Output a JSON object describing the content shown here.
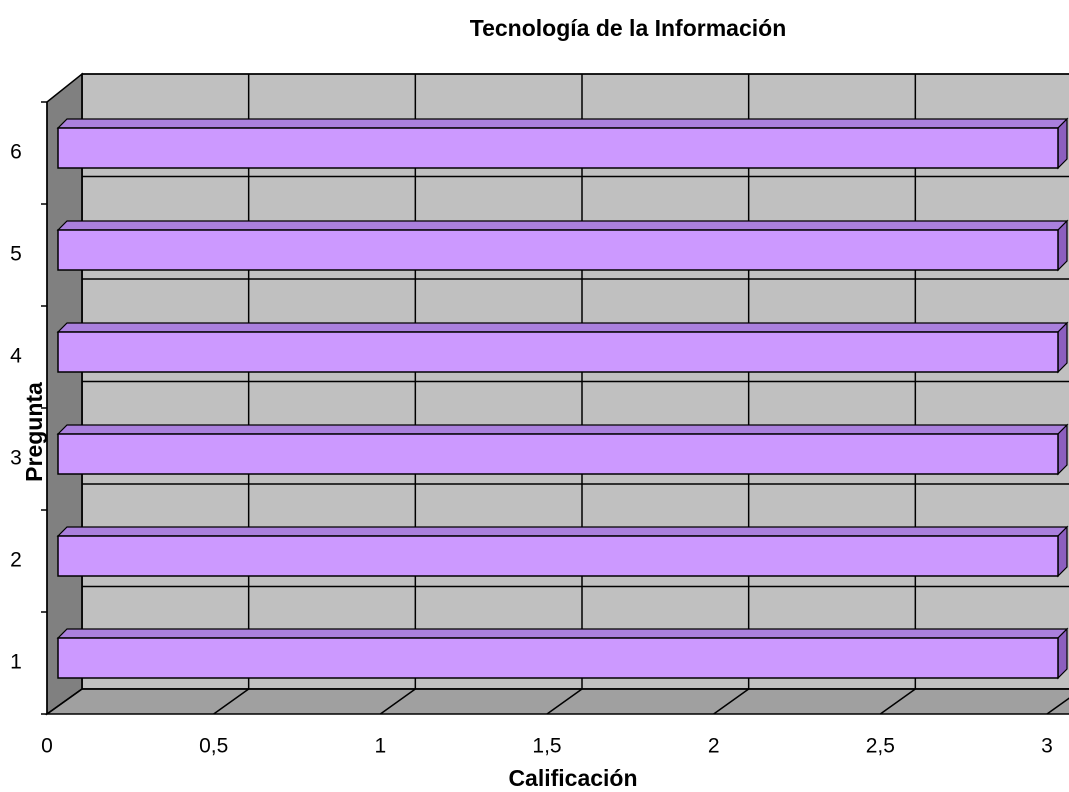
{
  "chart_data": {
    "type": "bar",
    "orientation": "horizontal",
    "title": "Tecnología de la Información",
    "x_label": "Calificación",
    "y_label": "Pregunta",
    "categories": [
      "1",
      "2",
      "3",
      "4",
      "5",
      "6"
    ],
    "values": [
      3,
      3,
      3,
      3,
      3,
      3
    ],
    "color": "#cc99ff",
    "xlim": [
      0,
      3
    ],
    "xticks": [
      0,
      {
        "value": 0.5,
        "label": "0,5"
      },
      1,
      {
        "value": 1.5,
        "label": "1,5"
      },
      2,
      {
        "value": 2.5,
        "label": "2,5"
      },
      3
    ],
    "grid": true
  }
}
